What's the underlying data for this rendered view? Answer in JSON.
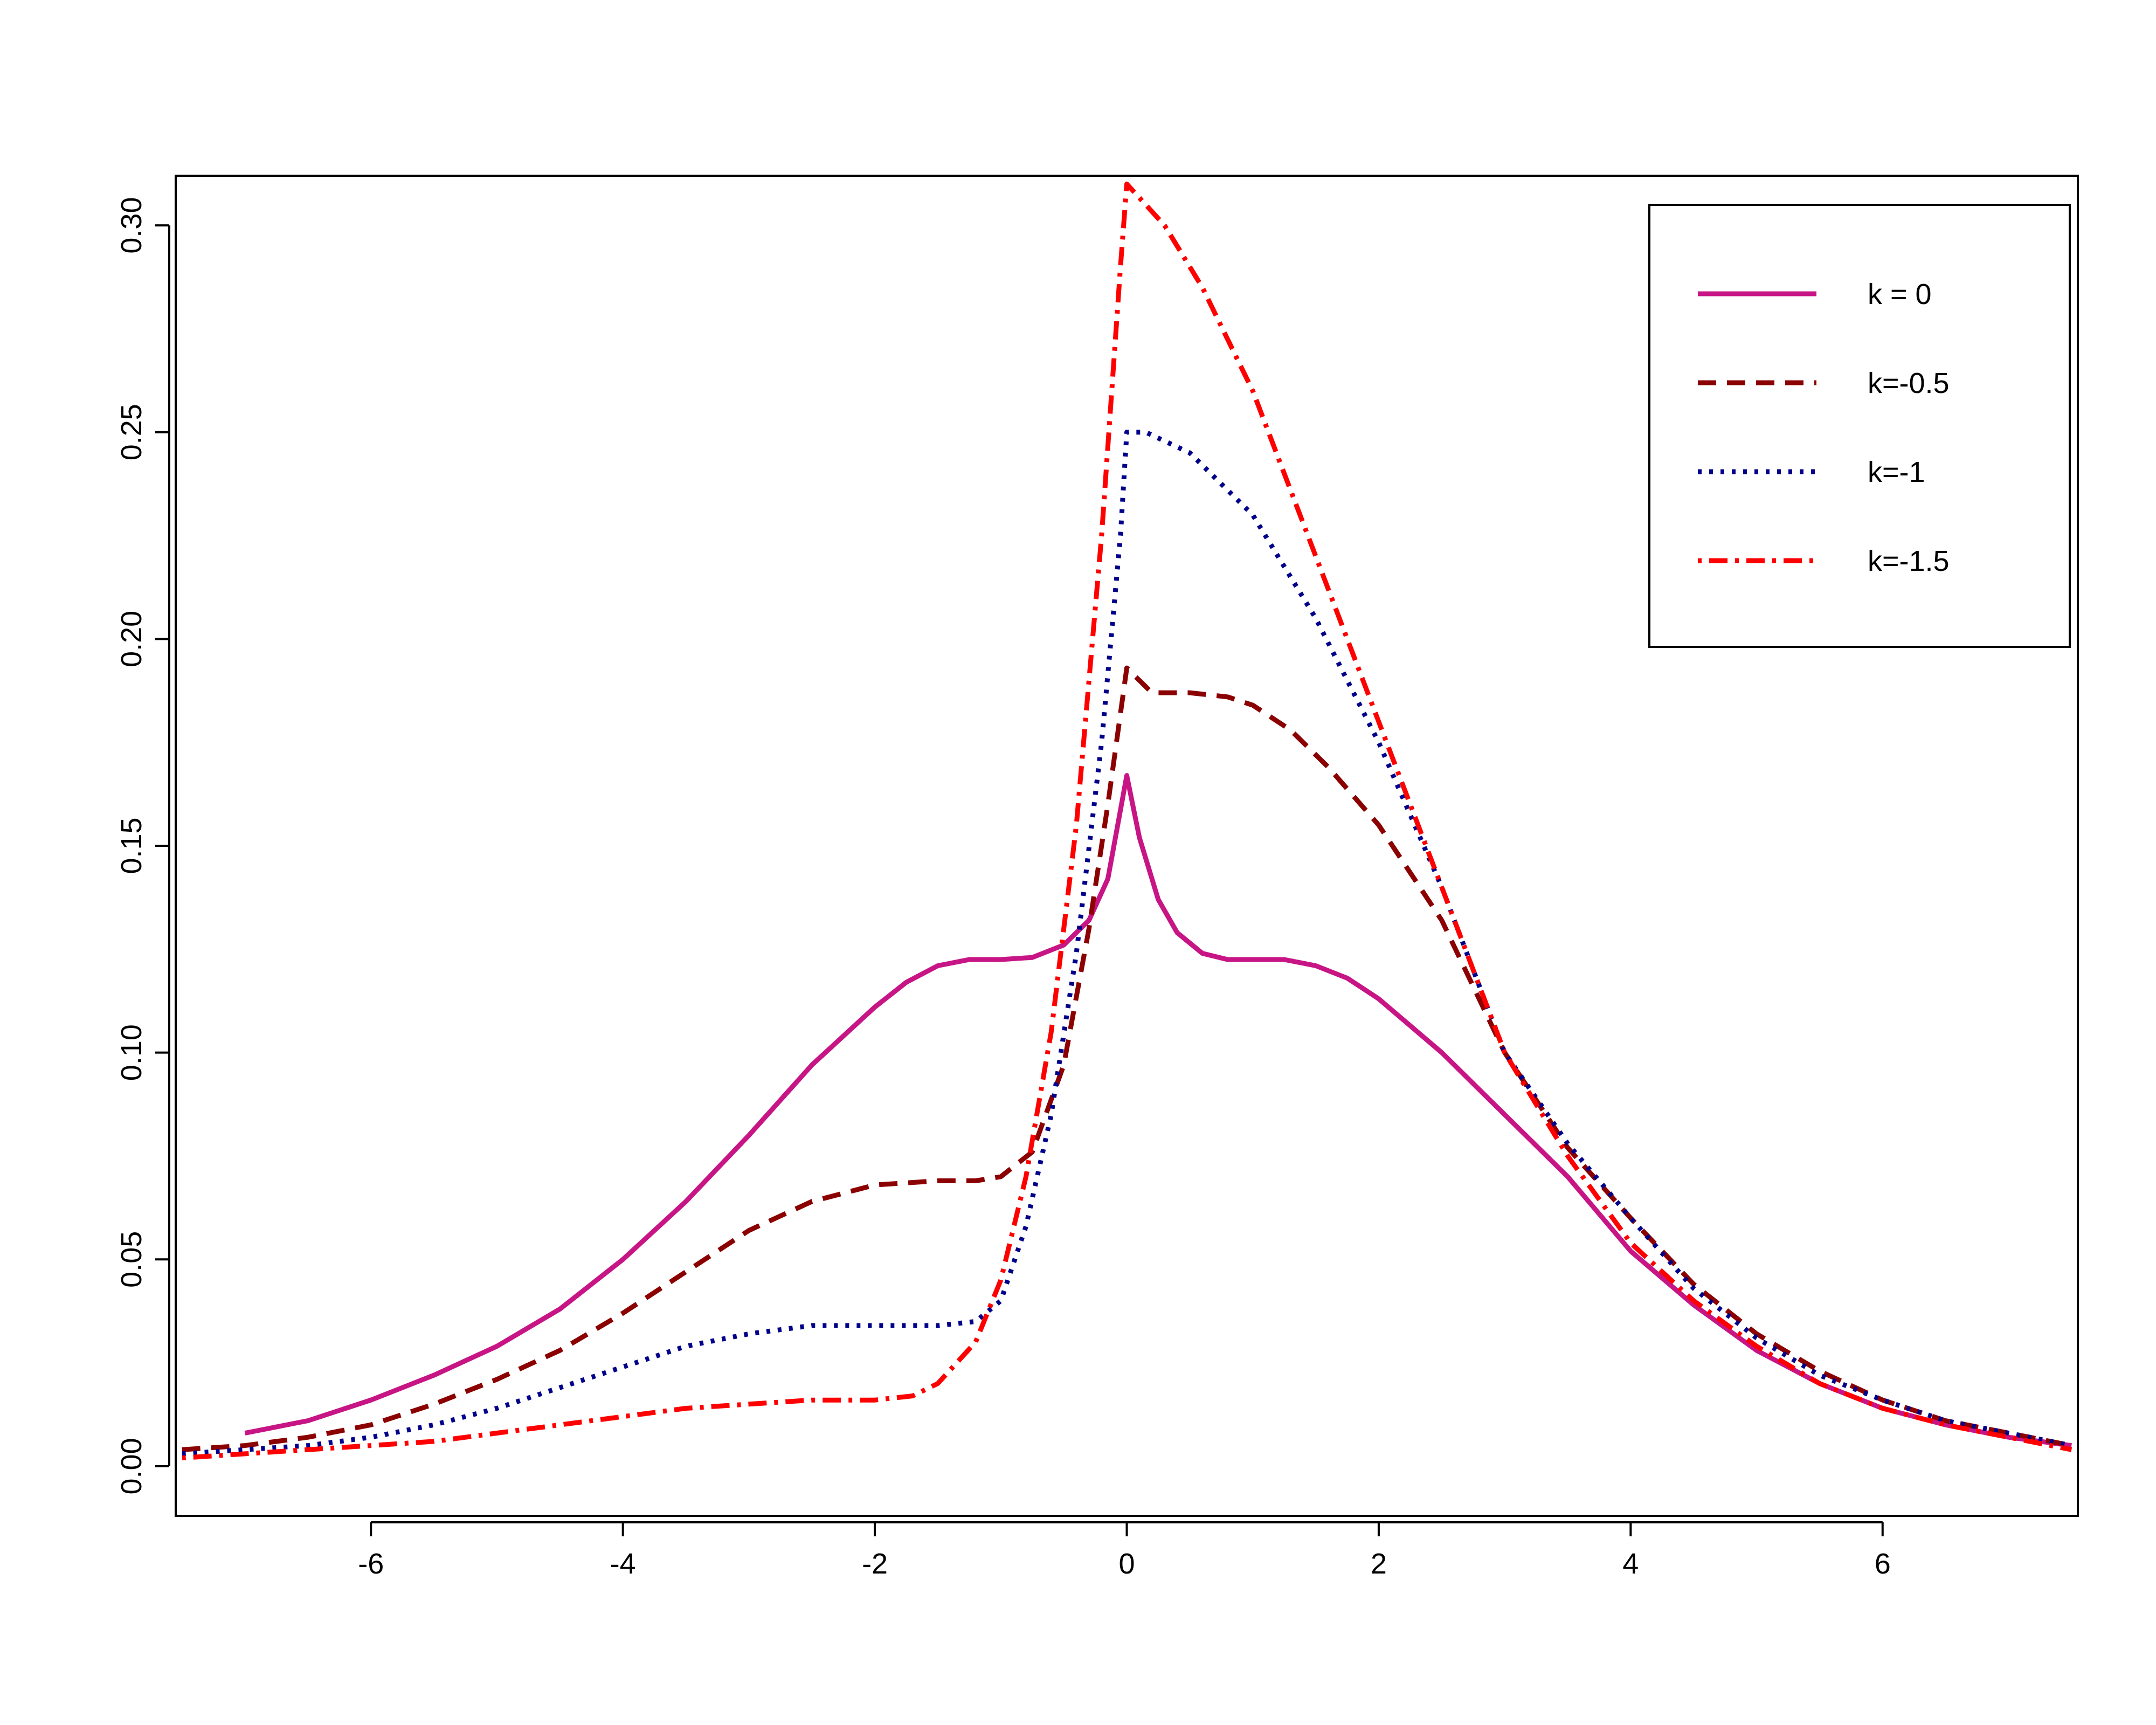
{
  "chart_data": {
    "type": "line",
    "title": "",
    "xlabel": "",
    "ylabel": "",
    "xlim": [
      -7.55,
      7.55
    ],
    "ylim": [
      -0.012,
      0.312
    ],
    "xticks": [
      -6,
      -4,
      -2,
      0,
      2,
      4,
      6
    ],
    "xtick_labels": [
      "-6",
      "-4",
      "-2",
      "0",
      "2",
      "4",
      "6"
    ],
    "yticks": [
      0.0,
      0.05,
      0.1,
      0.15,
      0.2,
      0.25,
      0.3
    ],
    "ytick_labels": [
      "0.00",
      "0.05",
      "0.10",
      "0.15",
      "0.20",
      "0.25",
      "0.30"
    ],
    "grid": false,
    "legend_position": "top-right",
    "series": [
      {
        "name": "k = 0",
        "color": "#C71585",
        "dash": "solid",
        "points": [
          [
            -7,
            0.008
          ],
          [
            -6.5,
            0.011
          ],
          [
            -6,
            0.016
          ],
          [
            -5.5,
            0.022
          ],
          [
            -5,
            0.029
          ],
          [
            -4.5,
            0.038
          ],
          [
            -4,
            0.05
          ],
          [
            -3.5,
            0.064
          ],
          [
            -3,
            0.08
          ],
          [
            -2.5,
            0.097
          ],
          [
            -2,
            0.111
          ],
          [
            -1.75,
            0.117
          ],
          [
            -1.5,
            0.121
          ],
          [
            -1.25,
            0.1225
          ],
          [
            -1,
            0.1225
          ],
          [
            -0.75,
            0.123
          ],
          [
            -0.5,
            0.126
          ],
          [
            -0.3,
            0.132
          ],
          [
            -0.15,
            0.142
          ],
          [
            0,
            0.167
          ],
          [
            0.1,
            0.152
          ],
          [
            0.25,
            0.137
          ],
          [
            0.4,
            0.129
          ],
          [
            0.6,
            0.124
          ],
          [
            0.8,
            0.1225
          ],
          [
            1,
            0.1225
          ],
          [
            1.25,
            0.1225
          ],
          [
            1.5,
            0.121
          ],
          [
            1.75,
            0.118
          ],
          [
            2,
            0.113
          ],
          [
            2.5,
            0.1
          ],
          [
            3,
            0.085
          ],
          [
            3.5,
            0.07
          ],
          [
            4,
            0.052
          ],
          [
            4.5,
            0.039
          ],
          [
            5,
            0.028
          ],
          [
            5.5,
            0.02
          ],
          [
            6,
            0.014
          ],
          [
            6.5,
            0.01
          ],
          [
            7,
            0.007
          ],
          [
            7.5,
            0.005
          ]
        ]
      },
      {
        "name": "k=-0.5",
        "color": "#8B0000",
        "dash": "dashed",
        "points": [
          [
            -7.5,
            0.004
          ],
          [
            -7,
            0.005
          ],
          [
            -6.5,
            0.007
          ],
          [
            -6,
            0.01
          ],
          [
            -5.5,
            0.015
          ],
          [
            -5,
            0.021
          ],
          [
            -4.5,
            0.028
          ],
          [
            -4,
            0.037
          ],
          [
            -3.5,
            0.047
          ],
          [
            -3,
            0.057
          ],
          [
            -2.5,
            0.064
          ],
          [
            -2,
            0.068
          ],
          [
            -1.5,
            0.069
          ],
          [
            -1.2,
            0.069
          ],
          [
            -1,
            0.07
          ],
          [
            -0.75,
            0.076
          ],
          [
            -0.5,
            0.097
          ],
          [
            -0.3,
            0.13
          ],
          [
            -0.15,
            0.16
          ],
          [
            0,
            0.193
          ],
          [
            0.2,
            0.187
          ],
          [
            0.5,
            0.187
          ],
          [
            0.8,
            0.186
          ],
          [
            1,
            0.184
          ],
          [
            1.3,
            0.178
          ],
          [
            1.6,
            0.169
          ],
          [
            2,
            0.155
          ],
          [
            2.5,
            0.132
          ],
          [
            3,
            0.1
          ],
          [
            3.5,
            0.077
          ],
          [
            4,
            0.06
          ],
          [
            4.5,
            0.044
          ],
          [
            5,
            0.032
          ],
          [
            5.5,
            0.023
          ],
          [
            6,
            0.016
          ],
          [
            6.5,
            0.011
          ],
          [
            7,
            0.008
          ],
          [
            7.5,
            0.005
          ]
        ]
      },
      {
        "name": "k=-1",
        "color": "#00008B",
        "dash": "dotted",
        "points": [
          [
            -7.5,
            0.003
          ],
          [
            -7,
            0.004
          ],
          [
            -6.5,
            0.005
          ],
          [
            -6,
            0.007
          ],
          [
            -5.5,
            0.01
          ],
          [
            -5,
            0.014
          ],
          [
            -4.5,
            0.019
          ],
          [
            -4,
            0.024
          ],
          [
            -3.5,
            0.029
          ],
          [
            -3,
            0.032
          ],
          [
            -2.5,
            0.034
          ],
          [
            -2,
            0.034
          ],
          [
            -1.5,
            0.034
          ],
          [
            -1.2,
            0.035
          ],
          [
            -1,
            0.04
          ],
          [
            -0.8,
            0.058
          ],
          [
            -0.6,
            0.085
          ],
          [
            -0.4,
            0.124
          ],
          [
            -0.2,
            0.175
          ],
          [
            -0.05,
            0.225
          ],
          [
            0,
            0.25
          ],
          [
            0.15,
            0.25
          ],
          [
            0.5,
            0.245
          ],
          [
            1,
            0.23
          ],
          [
            1.5,
            0.205
          ],
          [
            2,
            0.175
          ],
          [
            2.5,
            0.14
          ],
          [
            3,
            0.1
          ],
          [
            3.5,
            0.078
          ],
          [
            4,
            0.06
          ],
          [
            4.5,
            0.043
          ],
          [
            5,
            0.031
          ],
          [
            5.5,
            0.022
          ],
          [
            6,
            0.016
          ],
          [
            6.5,
            0.011
          ],
          [
            7,
            0.008
          ],
          [
            7.5,
            0.005
          ]
        ]
      },
      {
        "name": "k=-1.5",
        "color": "#FF0000",
        "dash": "dashdot",
        "points": [
          [
            -7.5,
            0.002
          ],
          [
            -7,
            0.003
          ],
          [
            -6.5,
            0.004
          ],
          [
            -6,
            0.005
          ],
          [
            -5.5,
            0.006
          ],
          [
            -5,
            0.008
          ],
          [
            -4.5,
            0.01
          ],
          [
            -4,
            0.012
          ],
          [
            -3.5,
            0.014
          ],
          [
            -3,
            0.015
          ],
          [
            -2.5,
            0.016
          ],
          [
            -2,
            0.016
          ],
          [
            -1.7,
            0.017
          ],
          [
            -1.5,
            0.02
          ],
          [
            -1.2,
            0.03
          ],
          [
            -1,
            0.045
          ],
          [
            -0.8,
            0.07
          ],
          [
            -0.6,
            0.105
          ],
          [
            -0.4,
            0.155
          ],
          [
            -0.2,
            0.225
          ],
          [
            -0.05,
            0.29
          ],
          [
            0,
            0.31
          ],
          [
            0.3,
            0.3
          ],
          [
            0.6,
            0.285
          ],
          [
            1,
            0.26
          ],
          [
            1.5,
            0.22
          ],
          [
            2,
            0.18
          ],
          [
            2.5,
            0.14
          ],
          [
            3,
            0.1
          ],
          [
            3.5,
            0.075
          ],
          [
            4,
            0.054
          ],
          [
            4.5,
            0.04
          ],
          [
            5,
            0.029
          ],
          [
            5.5,
            0.02
          ],
          [
            6,
            0.014
          ],
          [
            6.5,
            0.01
          ],
          [
            7,
            0.007
          ],
          [
            7.5,
            0.004
          ]
        ]
      }
    ]
  }
}
